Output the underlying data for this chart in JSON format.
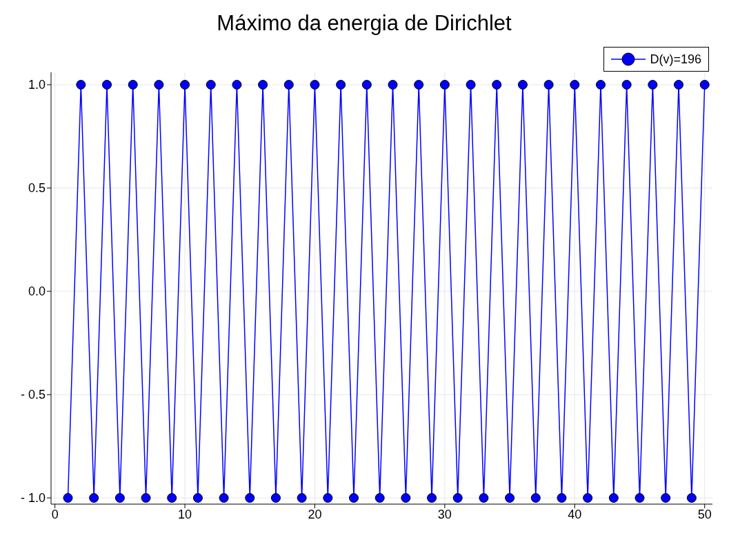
{
  "chart_data": {
    "type": "line",
    "title": "Máximo da energia de Dirichlet",
    "x": [
      1,
      2,
      3,
      4,
      5,
      6,
      7,
      8,
      9,
      10,
      11,
      12,
      13,
      14,
      15,
      16,
      17,
      18,
      19,
      20,
      21,
      22,
      23,
      24,
      25,
      26,
      27,
      28,
      29,
      30,
      31,
      32,
      33,
      34,
      35,
      36,
      37,
      38,
      39,
      40,
      41,
      42,
      43,
      44,
      45,
      46,
      47,
      48,
      49,
      50
    ],
    "series": [
      {
        "name": "D(v)=196",
        "color": "#0000ff",
        "values": [
          -1,
          1,
          -1,
          1,
          -1,
          1,
          -1,
          1,
          -1,
          1,
          -1,
          1,
          -1,
          1,
          -1,
          1,
          -1,
          1,
          -1,
          1,
          -1,
          1,
          -1,
          1,
          -1,
          1,
          -1,
          1,
          -1,
          1,
          -1,
          1,
          -1,
          1,
          -1,
          1,
          -1,
          1,
          -1,
          1,
          -1,
          1,
          -1,
          1,
          -1,
          1,
          -1,
          1,
          -1,
          1
        ]
      }
    ],
    "xlim": [
      -0.3,
      50.6
    ],
    "xticks": [
      0,
      10,
      20,
      30,
      40,
      50
    ],
    "ylim": [
      -1.03,
      1.06
    ],
    "yticks": [
      {
        "value": -1,
        "label": "- 1.0"
      },
      {
        "value": -0.5,
        "label": "- 0.5"
      },
      {
        "value": 0,
        "label": "0.0"
      },
      {
        "value": 0.5,
        "label": "0.5"
      },
      {
        "value": 1,
        "label": "1.0"
      }
    ],
    "grid": true,
    "legend": "top right",
    "marker": "circle",
    "line_style": "solid"
  }
}
